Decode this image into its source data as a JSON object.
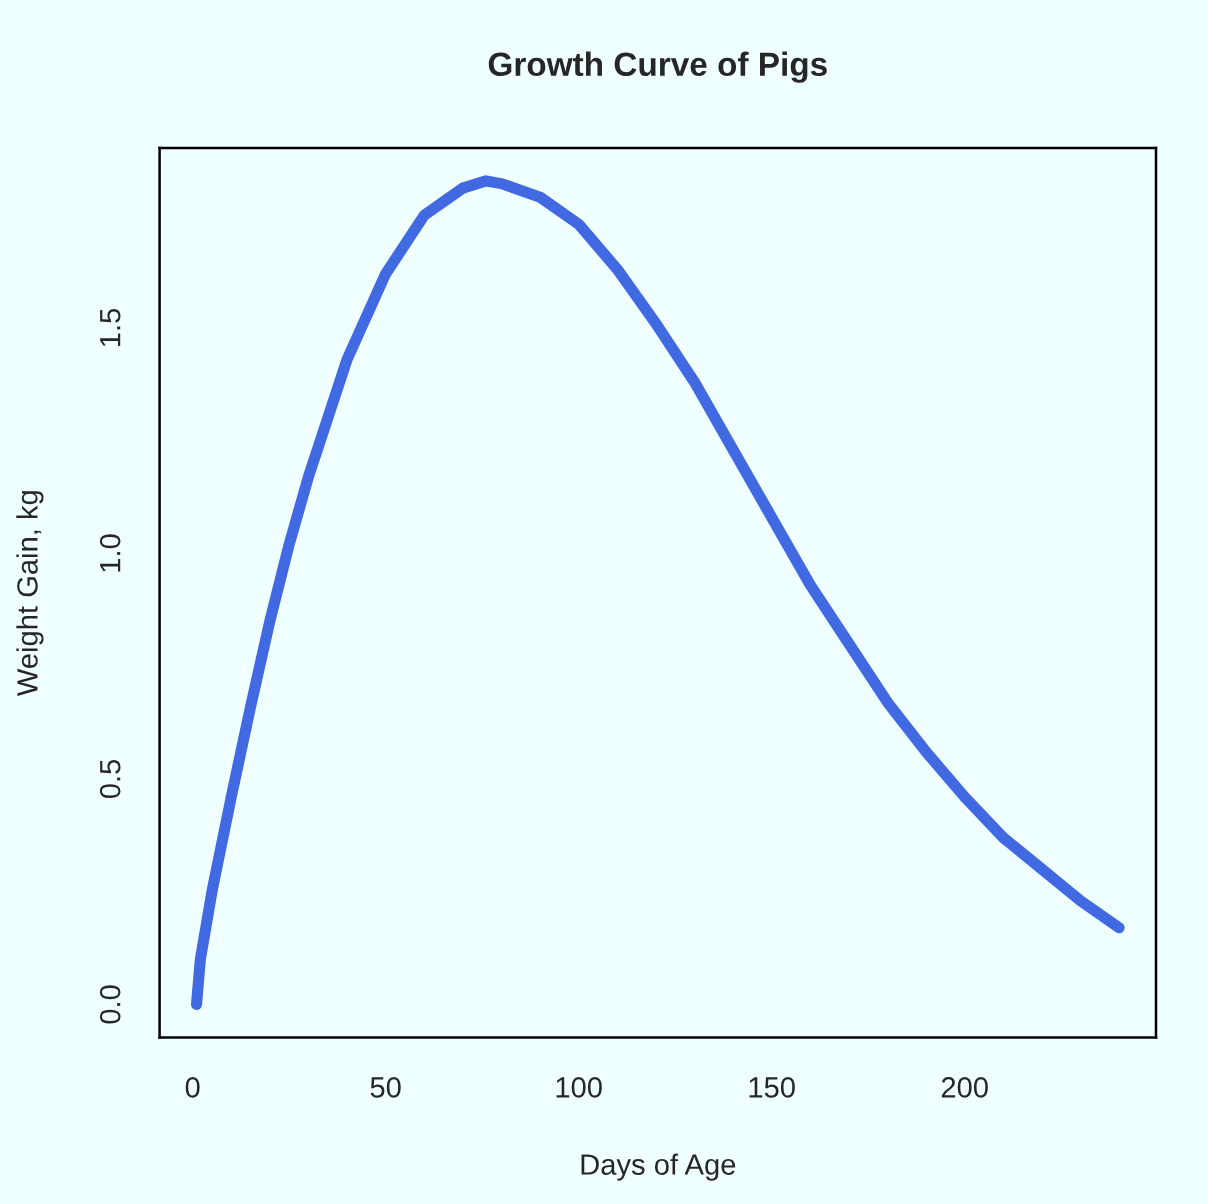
{
  "chart_data": {
    "type": "line",
    "title": "Growth Curve of Pigs",
    "xlabel": "Days of Age",
    "ylabel": "Weight Gain, kg",
    "x": [
      1,
      2,
      5,
      10,
      15,
      20,
      25,
      30,
      40,
      50,
      60,
      70,
      76,
      80,
      90,
      100,
      110,
      120,
      130,
      140,
      150,
      160,
      170,
      180,
      190,
      200,
      210,
      220,
      230,
      240
    ],
    "series": [
      {
        "color": "#4169e1",
        "values": [
          0.0,
          0.1,
          0.25,
          0.46,
          0.66,
          0.85,
          1.02,
          1.17,
          1.43,
          1.62,
          1.75,
          1.81,
          1.826,
          1.82,
          1.79,
          1.73,
          1.63,
          1.51,
          1.38,
          1.23,
          1.08,
          0.93,
          0.8,
          0.67,
          0.56,
          0.46,
          0.37,
          0.3,
          0.23,
          0.17
        ]
      }
    ],
    "xlim": [
      -8.56,
      249.56
    ],
    "ylim": [
      -0.073,
      1.899
    ],
    "xticks": [
      0,
      50,
      100,
      150,
      200
    ],
    "yticks": [
      {
        "value": 0,
        "label": "0.0"
      },
      {
        "value": 0.5,
        "label": "0.5"
      },
      {
        "value": 1,
        "label": "1.0"
      },
      {
        "value": 1.5,
        "label": "1.5"
      }
    ],
    "grid": false,
    "legend": false
  }
}
